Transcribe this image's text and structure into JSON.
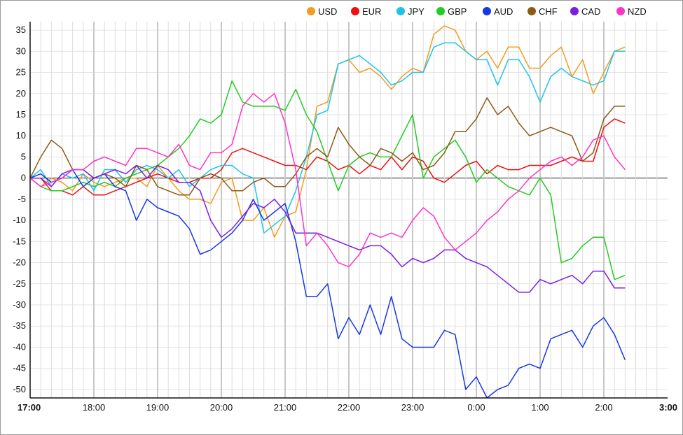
{
  "chart_data": {
    "type": "line",
    "title": "",
    "xlabel": "",
    "ylabel": "",
    "ylim": [
      -52,
      37
    ],
    "y_ticks": [
      35,
      30,
      25,
      20,
      15,
      10,
      5,
      0,
      -5,
      -10,
      -15,
      -20,
      -25,
      -30,
      -35,
      -40,
      -45,
      -50
    ],
    "x_range": [
      0,
      600
    ],
    "x_ticks": [
      {
        "t": 0,
        "label": "17:00",
        "bold": true
      },
      {
        "t": 60,
        "label": "18:00",
        "bold": false
      },
      {
        "t": 120,
        "label": "19:00",
        "bold": false
      },
      {
        "t": 180,
        "label": "20:00",
        "bold": false
      },
      {
        "t": 240,
        "label": "21:00",
        "bold": false
      },
      {
        "t": 300,
        "label": "22:00",
        "bold": false
      },
      {
        "t": 360,
        "label": "23:00",
        "bold": false
      },
      {
        "t": 420,
        "label": "0:00",
        "bold": false
      },
      {
        "t": 480,
        "label": "1:00",
        "bold": false
      },
      {
        "t": 540,
        "label": "2:00",
        "bold": false
      },
      {
        "t": 600,
        "label": "3:00",
        "bold": true
      }
    ],
    "legend_position": "top-right",
    "grid": true,
    "x_step_minutes": 10,
    "series": [
      {
        "name": "USD",
        "color": "#f39c1f",
        "values": [
          0,
          -2,
          0,
          -1,
          -3,
          1,
          -1,
          -2,
          -1,
          0,
          0,
          -2,
          3,
          0,
          -3,
          -5,
          -5,
          -6,
          -1,
          0,
          -10,
          -10,
          -7,
          -14,
          -9,
          -8,
          2,
          17,
          18,
          27,
          28,
          25,
          26,
          24,
          21,
          24,
          26,
          25,
          34,
          36,
          35,
          30,
          28,
          30,
          26,
          31,
          31,
          26,
          26,
          29,
          31,
          24,
          28,
          20,
          25,
          30,
          31
        ]
      },
      {
        "name": "EUR",
        "color": "#ee1111",
        "values": [
          0,
          0,
          -3,
          -3,
          -4,
          -2,
          -4,
          -4,
          -3,
          -2,
          -1,
          0,
          1,
          0,
          -1,
          -1,
          0,
          0,
          2,
          6,
          7,
          6,
          5,
          4,
          3,
          3,
          2,
          5,
          4,
          2,
          3,
          1,
          3,
          2,
          5,
          2,
          5,
          4,
          0,
          -1,
          1,
          3,
          4,
          1,
          3,
          2,
          2,
          3,
          3,
          3,
          4,
          5,
          4,
          4,
          12,
          14,
          13
        ]
      },
      {
        "name": "JPY",
        "color": "#1fc3ea",
        "values": [
          0,
          2,
          -2,
          1,
          0,
          1,
          -3,
          2,
          2,
          -1,
          2,
          3,
          2,
          0,
          2,
          -2,
          0,
          2,
          3,
          3,
          1,
          0,
          -13,
          -11,
          -9,
          -3,
          5,
          15,
          16,
          27,
          28,
          29,
          27,
          25,
          22,
          23,
          25,
          25,
          31,
          32,
          32,
          30,
          28,
          28,
          22,
          28,
          28,
          24,
          18,
          24,
          26,
          24,
          23,
          22,
          23,
          30,
          30
        ]
      },
      {
        "name": "GBP",
        "color": "#22cc22",
        "values": [
          0,
          -2,
          -3,
          -3,
          -2,
          -1,
          -2,
          -1,
          -2,
          0,
          1,
          2,
          3,
          5,
          7,
          10,
          14,
          13,
          15,
          23,
          18,
          17,
          17,
          17,
          16,
          21,
          15,
          11,
          4,
          -3,
          3,
          5,
          6,
          5,
          5,
          10,
          15,
          0,
          5,
          7,
          9,
          5,
          -1,
          2,
          0,
          -2,
          -3,
          -4,
          0,
          -4,
          -20,
          -19,
          -16,
          -14,
          -14,
          -24,
          -23
        ]
      },
      {
        "name": "AUD",
        "color": "#1737e6",
        "values": [
          0,
          1,
          -1,
          0,
          2,
          -2,
          0,
          1,
          -2,
          -3,
          -10,
          -5,
          -7,
          -8,
          -9,
          -12,
          -18,
          -17,
          -15,
          -13,
          -10,
          -5,
          -10,
          -8,
          -6,
          -15,
          -28,
          -28,
          -25,
          -38,
          -33,
          -37,
          -30,
          -37,
          -28,
          -38,
          -40,
          -40,
          -40,
          -36,
          -37,
          -50,
          -47,
          -52,
          -50,
          -49,
          -45,
          -44,
          -45,
          -38,
          -37,
          -36,
          -40,
          -35,
          -33,
          -37,
          -43
        ]
      },
      {
        "name": "CHF",
        "color": "#8b5a14",
        "values": [
          0,
          5,
          9,
          7,
          2,
          2,
          0,
          1,
          0,
          -2,
          3,
          2,
          -2,
          -3,
          -4,
          -4,
          0,
          1,
          0,
          -3,
          -3,
          -1,
          0,
          -2,
          -2,
          1,
          5,
          7,
          5,
          12,
          8,
          5,
          3,
          7,
          6,
          4,
          6,
          2,
          3,
          6,
          11,
          11,
          14,
          19,
          15,
          17,
          13,
          10,
          11,
          12,
          11,
          10,
          4,
          6,
          14,
          17,
          17
        ]
      },
      {
        "name": "CAD",
        "color": "#7a1fe0",
        "values": [
          0,
          0,
          -2,
          1,
          2,
          2,
          0,
          1,
          2,
          1,
          3,
          0,
          3,
          2,
          -1,
          -1,
          -3,
          -10,
          -14,
          -12,
          -9,
          -6,
          -7,
          -5,
          -8,
          -13,
          -13,
          -13,
          -14,
          -15,
          -16,
          -17,
          -16,
          -16,
          -18,
          -21,
          -19,
          -20,
          -19,
          -17,
          -17,
          -19,
          -20,
          -21,
          -23,
          -25,
          -27,
          -27,
          -24,
          -25,
          -24,
          -23,
          -25,
          -22,
          -22,
          -26,
          -26
        ]
      },
      {
        "name": "NZD",
        "color": "#ff33c8",
        "values": [
          0,
          -2,
          -1,
          0,
          2,
          2,
          4,
          5,
          4,
          3,
          7,
          7,
          6,
          5,
          8,
          3,
          2,
          6,
          6,
          8,
          17,
          20,
          18,
          20,
          13,
          2,
          -16,
          -13,
          -16,
          -20,
          -21,
          -18,
          -13,
          -14,
          -13,
          -14,
          -10,
          -7,
          -9,
          -14,
          -17,
          -15,
          -13,
          -10,
          -8,
          -5,
          -3,
          0,
          2,
          4,
          5,
          3,
          5,
          9,
          10,
          5,
          2
        ]
      }
    ]
  },
  "legend": {
    "items": [
      "USD",
      "EUR",
      "JPY",
      "GBP",
      "AUD",
      "CHF",
      "CAD",
      "NZD"
    ]
  }
}
